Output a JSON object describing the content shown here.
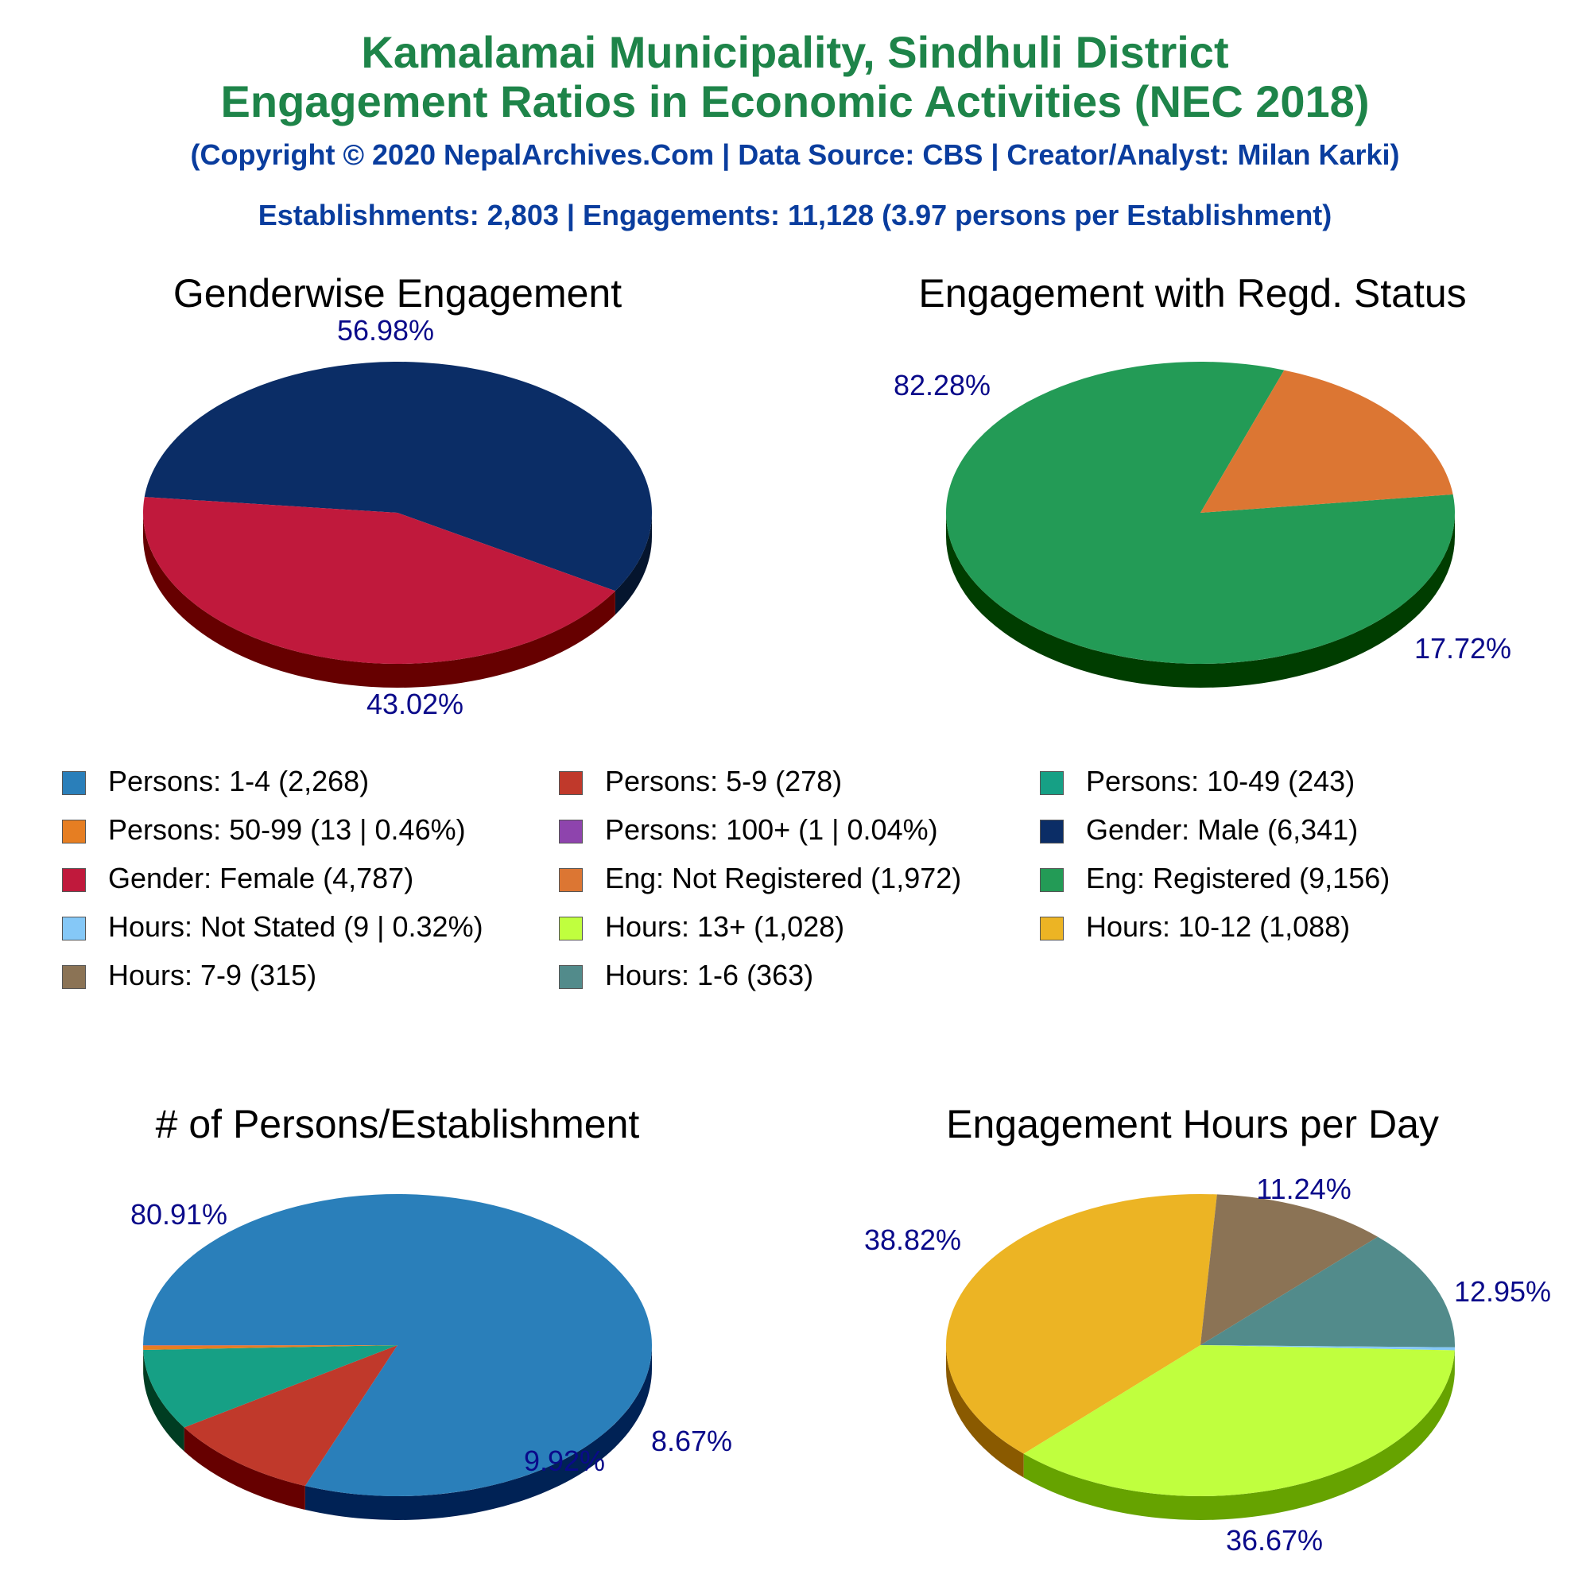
{
  "header": {
    "title_line1": "Kamalamai Municipality, Sindhuli District",
    "title_line2": "Engagement Ratios in Economic Activities (NEC 2018)",
    "copyright": "(Copyright © 2020 NepalArchives.Com | Data Source: CBS | Creator/Analyst: Milan Karki)",
    "summary": "Establishments: 2,803 | Engagements: 11,128 (3.97 persons per Establishment)"
  },
  "legend": [
    {
      "label": "Persons: 1-4 (2,268)",
      "color": "#2a7fba"
    },
    {
      "label": "Persons: 5-9 (278)",
      "color": "#c0392b"
    },
    {
      "label": "Persons: 10-49 (243)",
      "color": "#16a085"
    },
    {
      "label": "Persons: 50-99 (13 | 0.46%)",
      "color": "#e67e22"
    },
    {
      "label": "Persons: 100+ (1 | 0.04%)",
      "color": "#8e44ad"
    },
    {
      "label": "Gender: Male (6,341)",
      "color": "#0b2d66"
    },
    {
      "label": "Gender: Female (4,787)",
      "color": "#c0193c"
    },
    {
      "label": "Eng: Not Registered (1,972)",
      "color": "#dc7633"
    },
    {
      "label": "Eng: Registered (9,156)",
      "color": "#239b56"
    },
    {
      "label": "Hours: Not Stated (9 | 0.32%)",
      "color": "#85c8f7"
    },
    {
      "label": "Hours: 13+ (1,028)",
      "color": "#c0ff3e"
    },
    {
      "label": "Hours: 10-12 (1,088)",
      "color": "#ecb424"
    },
    {
      "label": "Hours: 7-9 (315)",
      "color": "#8b7355"
    },
    {
      "label": "Hours: 1-6 (363)",
      "color": "#528b8b"
    }
  ],
  "chart_data": [
    {
      "type": "pie",
      "title": "Genderwise Engagement",
      "slices": [
        {
          "name": "Gender: Male",
          "value": 6341,
          "label": "56.98%",
          "color": "#0b2d66",
          "side": "#05152e"
        },
        {
          "name": "Gender: Female",
          "value": 4787,
          "label": "43.02%",
          "color": "#c0193c",
          "side": "#660000"
        }
      ]
    },
    {
      "type": "pie",
      "title": "Engagement with Regd. Status",
      "slices": [
        {
          "name": "Eng: Registered",
          "value": 9156,
          "label": "82.28%",
          "color": "#239b56",
          "side": "#003d00"
        },
        {
          "name": "Eng: Not Registered",
          "value": 1972,
          "label": "17.72%",
          "color": "#dc7633",
          "side": "#7a1a00"
        }
      ]
    },
    {
      "type": "pie",
      "title": "# of Persons/Establishment",
      "slices": [
        {
          "name": "Persons: 1-4",
          "value": 2268,
          "label": "80.91%",
          "color": "#2a7fba",
          "side": "#002255"
        },
        {
          "name": "Persons: 5-9",
          "value": 278,
          "label": "9.92%",
          "color": "#c0392b",
          "side": "#660000"
        },
        {
          "name": "Persons: 10-49",
          "value": 243,
          "label": "8.67%",
          "color": "#16a085",
          "side": "#003d22"
        },
        {
          "name": "Persons: 50-99",
          "value": 13,
          "label": "",
          "color": "#e67e22",
          "side": "#7a3300"
        },
        {
          "name": "Persons: 100+",
          "value": 1,
          "label": "",
          "color": "#8e44ad",
          "side": "#3d0055"
        }
      ]
    },
    {
      "type": "pie",
      "title": "Engagement Hours per Day",
      "slices": [
        {
          "name": "Hours: 10-12",
          "value": 1088,
          "label": "38.82%",
          "color": "#ecb424",
          "side": "#8a5a00"
        },
        {
          "name": "Hours: 7-9",
          "value": 315,
          "label": "11.24%",
          "color": "#8b7355",
          "side": "#3d2b1f"
        },
        {
          "name": "Hours: 1-6",
          "value": 363,
          "label": "12.95%",
          "color": "#528b8b",
          "side": "#1f3d3d"
        },
        {
          "name": "Hours: Not Stated",
          "value": 9,
          "label": "",
          "color": "#85c8f7",
          "side": "#2a6a9a"
        },
        {
          "name": "Hours: 13+",
          "value": 1028,
          "label": "36.67%",
          "color": "#c0ff3e",
          "side": "#66a300"
        }
      ]
    }
  ]
}
